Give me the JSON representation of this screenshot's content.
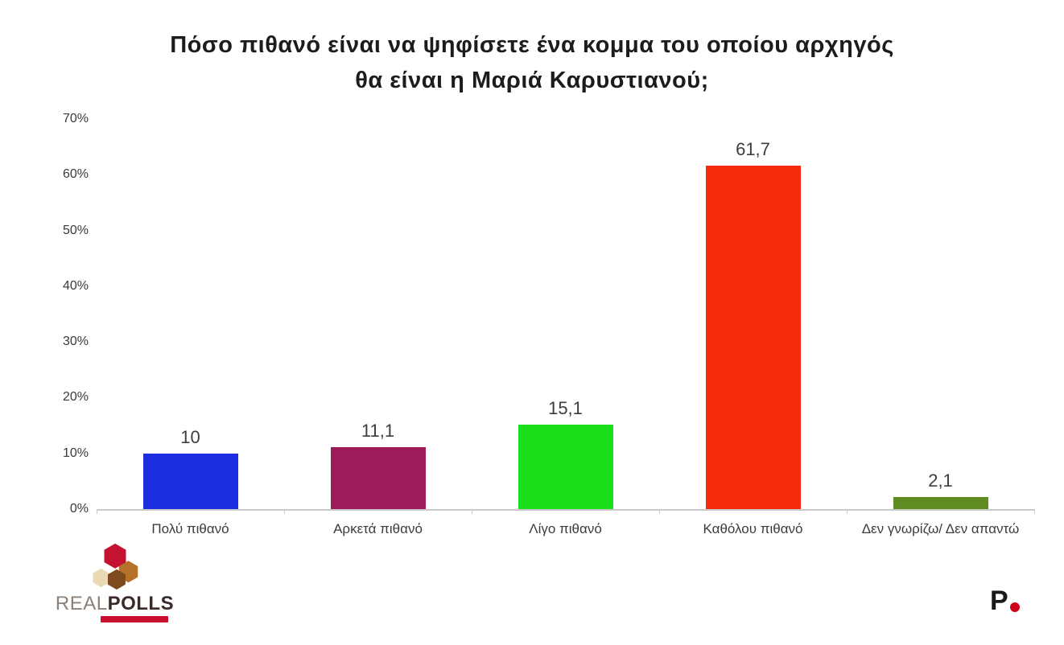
{
  "title": {
    "line1": "Πόσο πιθανό είναι να ψηφίσετε ένα κομμα του οποίου αρχηγός",
    "line2": "θα είναι η Μαριά Καρυστιανού;"
  },
  "chart_data": {
    "type": "bar",
    "title": "Πόσο πιθανό είναι να ψηφίσετε ένα κομμα του οποίου αρχηγός θα είναι η Μαριά Καρυστιανού;",
    "categories": [
      "Πολύ πιθανό",
      "Αρκετά πιθανό",
      "Λίγο πιθανό",
      "Καθόλου πιθανό",
      "Δεν γνωρίζω/ Δεν απαντώ"
    ],
    "values": [
      10,
      11.1,
      15.1,
      61.7,
      2.1
    ],
    "value_labels": [
      "10",
      "11,1",
      "15,1",
      "61,7",
      "2,1"
    ],
    "bar_colors": [
      "#1c2de0",
      "#9c1b59",
      "#1cdf1c",
      "#f52a0d",
      "#5f8b21"
    ],
    "xlabel": "",
    "ylabel": "",
    "ylim": [
      0,
      70
    ],
    "ytick_labels": [
      "0%",
      "10%",
      "20%",
      "30%",
      "40%",
      "50%",
      "60%",
      "70%"
    ],
    "ytick_values": [
      0,
      10,
      20,
      30,
      40,
      50,
      60,
      70
    ],
    "grid": false,
    "legend": false
  },
  "footer": {
    "logo_real": "REAL",
    "logo_polls": "POLLS",
    "p_letter": "P"
  },
  "colors": {
    "title_text": "#1c1c1c",
    "axis_text": "#3a3a3a",
    "baseline": "#c9c9c9",
    "tagline_red": "#c8102e",
    "p_dot_red": "#d0021b"
  },
  "icons": {
    "realpolls_logo": "hexagon-cube-cluster",
    "p_dot": "red-circle"
  }
}
